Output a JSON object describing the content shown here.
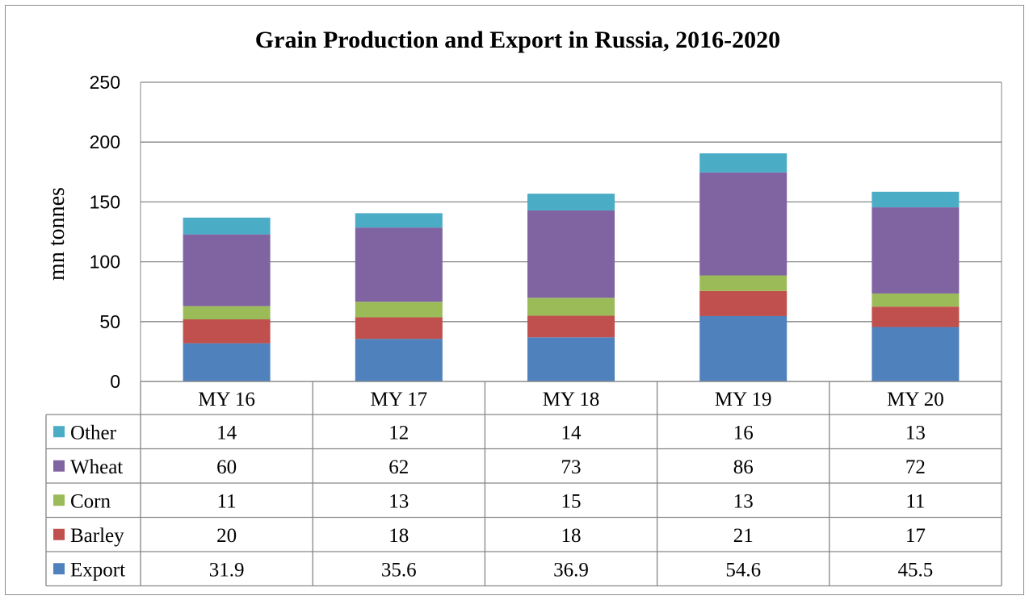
{
  "chart_data": {
    "type": "bar",
    "stacked": true,
    "title": "Grain Production and Export in Russia, 2016-2020",
    "xlabel": "",
    "ylabel": "mn tonnes",
    "ylim": [
      0,
      250
    ],
    "yticks": [
      "0",
      "50",
      "100",
      "150",
      "200",
      "250"
    ],
    "grid": true,
    "legend": "data table",
    "categories": [
      "MY 16",
      "MY 17",
      "MY 18",
      "MY 19",
      "MY 20"
    ],
    "series": [
      {
        "name": "Export",
        "color": "#4f81bd",
        "values": [
          31.9,
          35.6,
          36.9,
          54.6,
          45.5
        ],
        "labels": [
          "31.9",
          "35.6",
          "36.9",
          "54.6",
          "45.5"
        ]
      },
      {
        "name": "Barley",
        "color": "#c0504d",
        "values": [
          20,
          18,
          18,
          21,
          17
        ],
        "labels": [
          "20",
          "18",
          "18",
          "21",
          "17"
        ]
      },
      {
        "name": "Corn",
        "color": "#9bbb59",
        "values": [
          11,
          13,
          15,
          13,
          11
        ],
        "labels": [
          "11",
          "13",
          "15",
          "13",
          "11"
        ]
      },
      {
        "name": "Wheat",
        "color": "#8064a2",
        "values": [
          60,
          62,
          73,
          86,
          72
        ],
        "labels": [
          "60",
          "62",
          "73",
          "86",
          "72"
        ]
      },
      {
        "name": "Other",
        "color": "#4bacc6",
        "values": [
          14,
          12,
          14,
          16,
          13
        ],
        "labels": [
          "14",
          "12",
          "14",
          "16",
          "13"
        ]
      }
    ],
    "table_row_order": [
      "Other",
      "Wheat",
      "Corn",
      "Barley",
      "Export"
    ]
  }
}
